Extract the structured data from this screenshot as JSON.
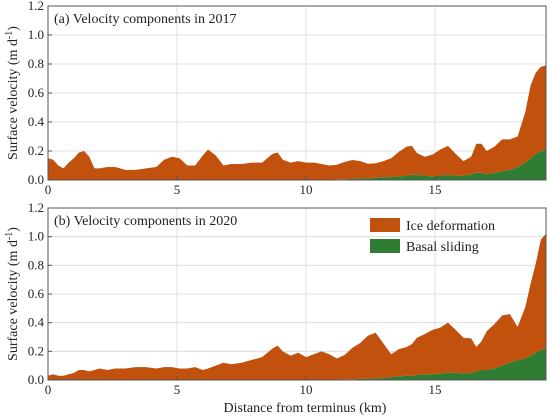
{
  "chart_data": [
    {
      "type": "area",
      "title": "(a) Velocity components in 2017",
      "xlabel": "",
      "ylabel": "Surface velocity (m d",
      "ylabel_sup": "-1",
      "ylabel_end": ")",
      "xlim": [
        0,
        19.3
      ],
      "ylim": [
        0,
        1.2
      ],
      "xticks": [
        0,
        5,
        10,
        15
      ],
      "yticks": [
        0.0,
        0.2,
        0.4,
        0.6,
        0.8,
        1.0,
        1.2
      ],
      "ytick_labels": [
        "0.0",
        "0.2",
        "0.4",
        "0.6",
        "0.8",
        "1.0",
        "1.2"
      ],
      "grid": true,
      "stacked": true,
      "x": [
        0,
        0.2,
        0.4,
        0.6,
        0.8,
        1.0,
        1.2,
        1.4,
        1.6,
        1.8,
        2.0,
        2.3,
        2.6,
        3.0,
        3.4,
        3.8,
        4.2,
        4.5,
        4.8,
        5.1,
        5.4,
        5.7,
        6.0,
        6.2,
        6.5,
        6.8,
        7.1,
        7.5,
        7.9,
        8.3,
        8.7,
        8.9,
        9.1,
        9.4,
        9.7,
        10.0,
        10.3,
        10.6,
        10.9,
        11.2,
        11.5,
        11.8,
        12.1,
        12.4,
        12.7,
        13.0,
        13.3,
        13.6,
        13.9,
        14.1,
        14.3,
        14.6,
        14.9,
        15.2,
        15.5,
        15.8,
        16.1,
        16.4,
        16.6,
        16.8,
        17.0,
        17.3,
        17.6,
        17.9,
        18.2,
        18.5,
        18.7,
        18.9,
        19.1,
        19.3
      ],
      "series": [
        {
          "name": "Basal sliding",
          "color": "#2e7d32",
          "values": [
            0,
            0,
            0,
            0,
            0,
            0,
            0,
            0,
            0,
            0,
            0,
            0,
            0,
            0,
            0,
            0,
            0,
            0,
            0,
            0,
            0,
            0,
            0,
            0,
            0,
            0,
            0,
            0,
            0,
            0,
            0,
            0,
            0,
            0,
            0,
            0,
            0,
            0,
            0,
            0.005,
            0.005,
            0.008,
            0.01,
            0.012,
            0.015,
            0.02,
            0.02,
            0.025,
            0.03,
            0.035,
            0.035,
            0.03,
            0.025,
            0.03,
            0.035,
            0.03,
            0.03,
            0.04,
            0.05,
            0.05,
            0.04,
            0.05,
            0.06,
            0.07,
            0.09,
            0.12,
            0.15,
            0.18,
            0.2,
            0.21
          ]
        },
        {
          "name": "Ice deformation",
          "color": "#c1510d",
          "values": [
            0.15,
            0.14,
            0.1,
            0.08,
            0.12,
            0.15,
            0.19,
            0.2,
            0.16,
            0.08,
            0.08,
            0.09,
            0.09,
            0.07,
            0.07,
            0.08,
            0.09,
            0.14,
            0.16,
            0.15,
            0.1,
            0.1,
            0.17,
            0.21,
            0.17,
            0.1,
            0.11,
            0.11,
            0.12,
            0.12,
            0.18,
            0.19,
            0.14,
            0.12,
            0.13,
            0.12,
            0.12,
            0.11,
            0.1,
            0.1,
            0.12,
            0.13,
            0.12,
            0.1,
            0.1,
            0.11,
            0.13,
            0.17,
            0.2,
            0.2,
            0.15,
            0.13,
            0.15,
            0.18,
            0.2,
            0.15,
            0.1,
            0.12,
            0.2,
            0.2,
            0.16,
            0.18,
            0.22,
            0.21,
            0.21,
            0.35,
            0.5,
            0.56,
            0.58,
            0.58
          ]
        }
      ]
    },
    {
      "type": "area",
      "title": "(b) Velocity components in 2020",
      "xlabel": "Distance from terminus (km)",
      "ylabel": "Surface velocity (m d",
      "ylabel_sup": "-1",
      "ylabel_end": ")",
      "xlim": [
        0,
        19.3
      ],
      "ylim": [
        0,
        1.2
      ],
      "xticks": [
        0,
        5,
        10,
        15
      ],
      "yticks": [
        0.0,
        0.2,
        0.4,
        0.6,
        0.8,
        1.0,
        1.2
      ],
      "ytick_labels": [
        "0.0",
        "0.2",
        "0.4",
        "0.6",
        "0.8",
        "1.0",
        "1.2"
      ],
      "grid": true,
      "stacked": true,
      "legend": {
        "position": "top-right"
      },
      "x": [
        0,
        0.2,
        0.4,
        0.6,
        0.8,
        1.0,
        1.2,
        1.4,
        1.6,
        1.8,
        2.0,
        2.3,
        2.6,
        3.0,
        3.4,
        3.8,
        4.2,
        4.5,
        4.8,
        5.1,
        5.4,
        5.7,
        6.0,
        6.2,
        6.5,
        6.8,
        7.1,
        7.5,
        7.9,
        8.3,
        8.7,
        8.9,
        9.1,
        9.4,
        9.7,
        10.0,
        10.3,
        10.6,
        10.9,
        11.2,
        11.5,
        11.8,
        12.1,
        12.4,
        12.7,
        13.0,
        13.3,
        13.6,
        13.9,
        14.1,
        14.3,
        14.6,
        14.9,
        15.2,
        15.5,
        15.8,
        16.1,
        16.4,
        16.6,
        16.8,
        17.0,
        17.3,
        17.6,
        17.9,
        18.2,
        18.5,
        18.7,
        18.9,
        19.1,
        19.3
      ],
      "series": [
        {
          "name": "Basal sliding",
          "color": "#2e7d32",
          "values": [
            0,
            0,
            0,
            0,
            0,
            0,
            0,
            0,
            0,
            0,
            0,
            0,
            0,
            0,
            0,
            0,
            0,
            0,
            0,
            0,
            0,
            0,
            0,
            0,
            0,
            0,
            0,
            0,
            0,
            0,
            0,
            0,
            0,
            0,
            0,
            0,
            0,
            0,
            0,
            0,
            0.005,
            0.005,
            0.008,
            0.01,
            0.01,
            0.015,
            0.02,
            0.025,
            0.03,
            0.03,
            0.035,
            0.04,
            0.04,
            0.045,
            0.05,
            0.05,
            0.045,
            0.05,
            0.06,
            0.07,
            0.07,
            0.08,
            0.1,
            0.12,
            0.14,
            0.15,
            0.17,
            0.19,
            0.21,
            0.22
          ]
        },
        {
          "name": "Ice deformation",
          "color": "#c1510d",
          "values": [
            0.03,
            0.04,
            0.03,
            0.03,
            0.04,
            0.05,
            0.07,
            0.07,
            0.06,
            0.07,
            0.08,
            0.07,
            0.08,
            0.08,
            0.09,
            0.09,
            0.08,
            0.09,
            0.09,
            0.08,
            0.08,
            0.09,
            0.07,
            0.08,
            0.1,
            0.12,
            0.11,
            0.12,
            0.14,
            0.16,
            0.22,
            0.24,
            0.2,
            0.17,
            0.19,
            0.16,
            0.18,
            0.2,
            0.18,
            0.15,
            0.17,
            0.22,
            0.25,
            0.3,
            0.32,
            0.24,
            0.16,
            0.19,
            0.2,
            0.22,
            0.26,
            0.28,
            0.31,
            0.32,
            0.35,
            0.3,
            0.25,
            0.24,
            0.17,
            0.2,
            0.27,
            0.31,
            0.35,
            0.34,
            0.23,
            0.36,
            0.5,
            0.62,
            0.77,
            0.8
          ]
        }
      ]
    }
  ]
}
